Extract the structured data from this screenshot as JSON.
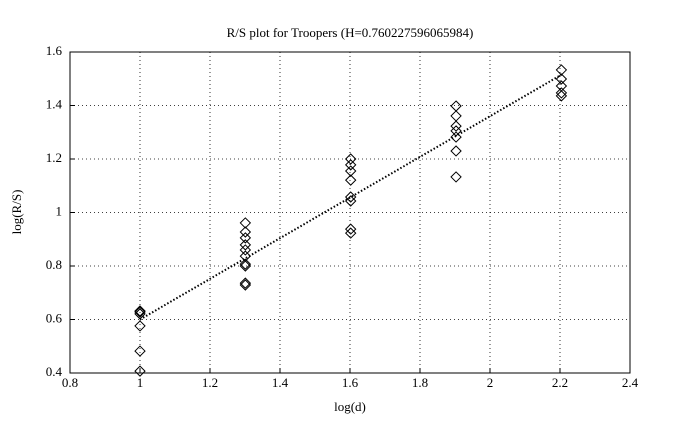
{
  "chart_data": {
    "type": "scatter",
    "title": "R/S plot for Troopers (H=0.760227596065984)",
    "x_label": "log(d)",
    "y_label": "log(R/S)",
    "xlim": [
      0.8,
      2.4
    ],
    "xticks": [
      0.8,
      1,
      1.2,
      1.4,
      1.6,
      1.8,
      2,
      2.2,
      2.4
    ],
    "ylim": [
      0.4,
      1.6
    ],
    "yticks": [
      0.4,
      0.6,
      0.8,
      1,
      1.2,
      1.4,
      1.6
    ],
    "grid": true,
    "series": [
      {
        "marker": "diamond",
        "color": "#000000",
        "x": [
          1,
          1,
          1,
          1,
          1,
          1,
          1.301,
          1.301,
          1.301,
          1.301,
          1.301,
          1.301,
          1.301,
          1.301,
          1.301,
          1.301,
          1.602,
          1.602,
          1.602,
          1.602,
          1.602,
          1.602,
          1.602,
          1.602,
          1.903,
          1.903,
          1.903,
          1.903,
          1.903,
          1.903,
          1.903,
          2.204,
          2.204,
          2.204,
          2.204,
          2.204
        ],
        "values": [
          0.632,
          0.628,
          0.621,
          0.576,
          0.482,
          0.407,
          0.961,
          0.927,
          0.905,
          0.879,
          0.86,
          0.837,
          0.807,
          0.8,
          0.736,
          0.729,
          1.2,
          1.178,
          1.155,
          1.121,
          1.058,
          1.043,
          0.938,
          0.923,
          1.398,
          1.361,
          1.323,
          1.305,
          1.282,
          1.23,
          1.133,
          1.533,
          1.499,
          1.473,
          1.447,
          1.436
        ]
      },
      {
        "marker": "dotted-line",
        "color": "#000000",
        "x": [
          1,
          2.204
        ],
        "values": [
          0.6,
          1.515
        ]
      }
    ]
  }
}
